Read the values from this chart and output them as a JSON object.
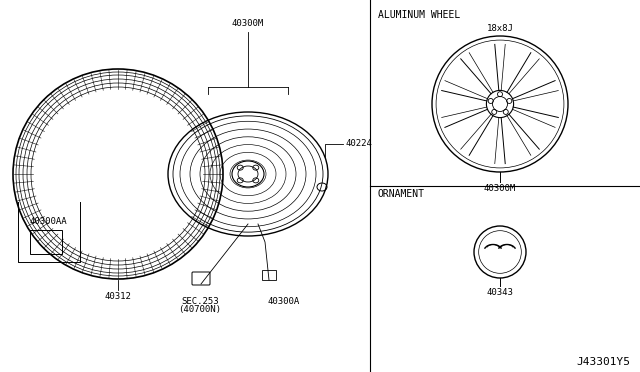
{
  "bg_color": "#ffffff",
  "line_color": "#000000",
  "labels": {
    "40300M_top": "40300M",
    "40224": "40224",
    "40312": "40312",
    "40300AA": "40300AA",
    "40300A": "40300A",
    "aluminum_wheel_title": "ALUMINUM WHEEL",
    "wheel_size": "18x8J",
    "40300M_bottom": "40300M",
    "ornament_title": "ORNAMENT",
    "40343": "40343",
    "sec253": "SEC.253",
    "sec253b": "(40700N)",
    "diagram_id": "J43301Y5"
  },
  "font_size_label": 6.5,
  "font_size_section": 7,
  "font_size_diagram_id": 8
}
